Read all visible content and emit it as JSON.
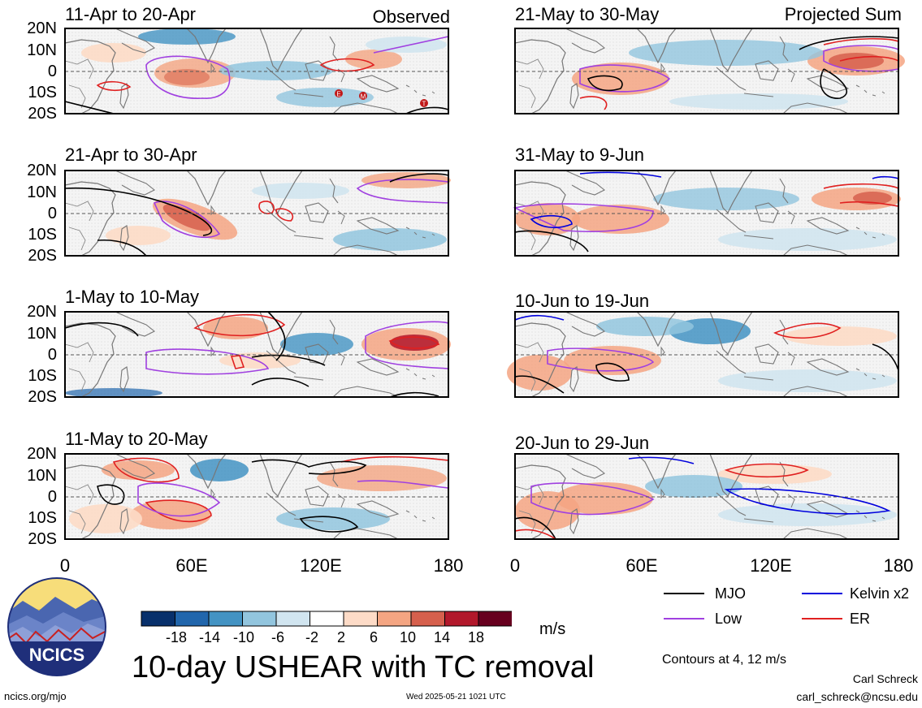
{
  "panels": [
    {
      "title": "11-Apr to 20-Apr",
      "tag": "Observed"
    },
    {
      "title": "21-Apr to 30-Apr",
      "tag": ""
    },
    {
      "title": "1-May to 10-May",
      "tag": ""
    },
    {
      "title": "11-May to 20-May",
      "tag": ""
    },
    {
      "title": "21-May to 30-May",
      "tag": "Projected Sum"
    },
    {
      "title": "31-May to 9-Jun",
      "tag": ""
    },
    {
      "title": "10-Jun to 19-Jun",
      "tag": ""
    },
    {
      "title": "20-Jun to 29-Jun",
      "tag": ""
    }
  ],
  "lat_labels": [
    "20N",
    "10N",
    "0",
    "10S",
    "20S"
  ],
  "lon_labels": [
    "0",
    "60E",
    "120E",
    "180"
  ],
  "tc_markers": [
    "E",
    "M",
    "T"
  ],
  "colorbar": {
    "labels": [
      "-18",
      "-14",
      "-10",
      "-6",
      "-2",
      "2",
      "6",
      "10",
      "14",
      "18"
    ],
    "unit": "m/s",
    "colors": [
      "#08306b",
      "#2166ac",
      "#4393c3",
      "#92c5de",
      "#d1e5f0",
      "#ffffff",
      "#fddbc7",
      "#f4a582",
      "#d6604d",
      "#b2182b",
      "#67001f"
    ]
  },
  "title": "10-day USHEAR with TC removal",
  "logo": {
    "text": "NCICS"
  },
  "legend": {
    "items": [
      {
        "label": "MJO",
        "color": "#000000"
      },
      {
        "label": "Kelvin x2",
        "color": "#0000dd"
      },
      {
        "label": "Low",
        "color": "#a040e0"
      },
      {
        "label": "ER",
        "color": "#e02020"
      }
    ],
    "contours_note": "Contours at 4, 12 m/s"
  },
  "footer": {
    "website": "ncics.org/mjo",
    "timestamp": "Wed 2025-05-21 1021 UTC",
    "author": "Carl Schreck",
    "email": "carl_schreck@ncsu.edu"
  }
}
